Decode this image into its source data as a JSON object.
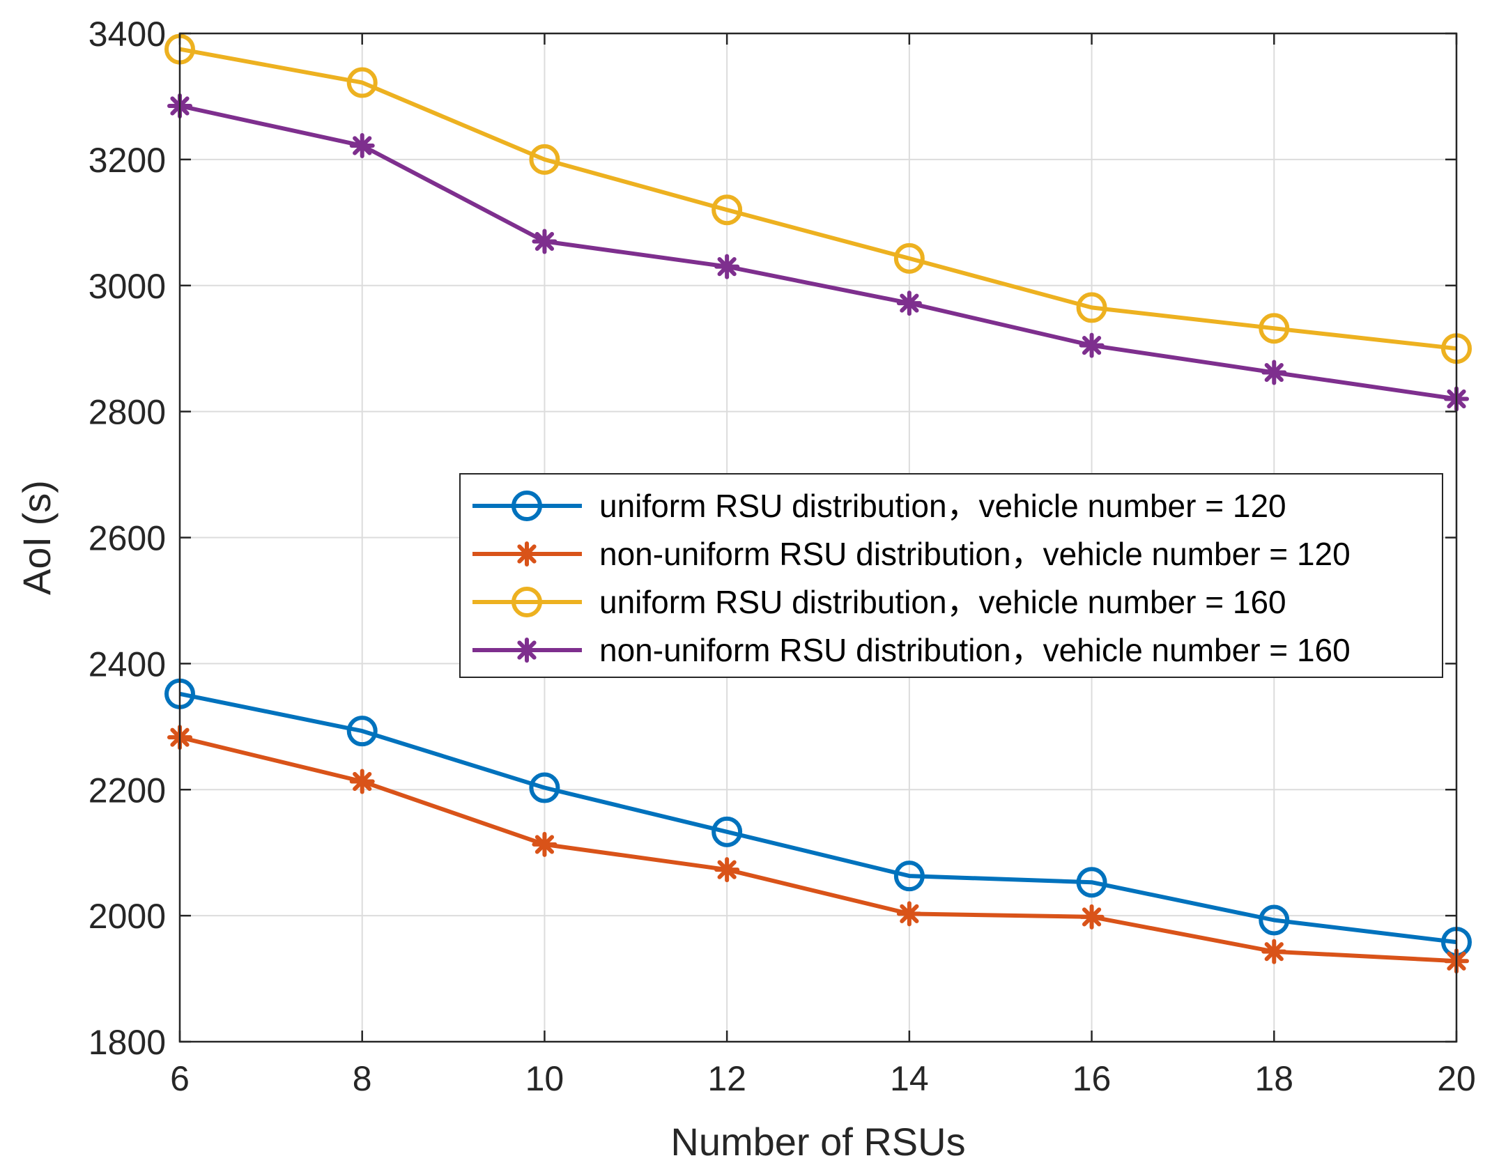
{
  "chart_data": {
    "type": "line",
    "title": "",
    "xlabel": "Number of RSUs",
    "ylabel": "AoI (s)",
    "x": [
      6,
      8,
      10,
      12,
      14,
      16,
      18,
      20
    ],
    "xticks": [
      "6",
      "8",
      "10",
      "12",
      "14",
      "16",
      "18",
      "20"
    ],
    "xlim": [
      6,
      20
    ],
    "yticks": [
      "1800",
      "2000",
      "2200",
      "2400",
      "2600",
      "2800",
      "3000",
      "3200",
      "3400"
    ],
    "ylim": [
      1800,
      3400
    ],
    "grid": true,
    "legend_position": "center-right",
    "series": [
      {
        "name": "uniform RSU distribution，vehicle number = 120",
        "color": "#0072BD",
        "marker": "circle",
        "values": [
          2352,
          2293,
          2203,
          2133,
          2063,
          2053,
          1993,
          1958
        ]
      },
      {
        "name": "non-uniform RSU distribution，vehicle number = 120",
        "color": "#D95319",
        "marker": "asterisk",
        "values": [
          2283,
          2213,
          2113,
          2073,
          2003,
          1998,
          1943,
          1928
        ]
      },
      {
        "name": "uniform RSU distribution，vehicle number = 160",
        "color": "#EDB120",
        "marker": "circle",
        "values": [
          3375,
          3322,
          3200,
          3120,
          3043,
          2965,
          2932,
          2900
        ]
      },
      {
        "name": "non-uniform RSU distribution，vehicle number = 160",
        "color": "#7E2F8E",
        "marker": "asterisk",
        "values": [
          3285,
          3222,
          3070,
          3030,
          2972,
          2905,
          2862,
          2820
        ]
      }
    ]
  }
}
